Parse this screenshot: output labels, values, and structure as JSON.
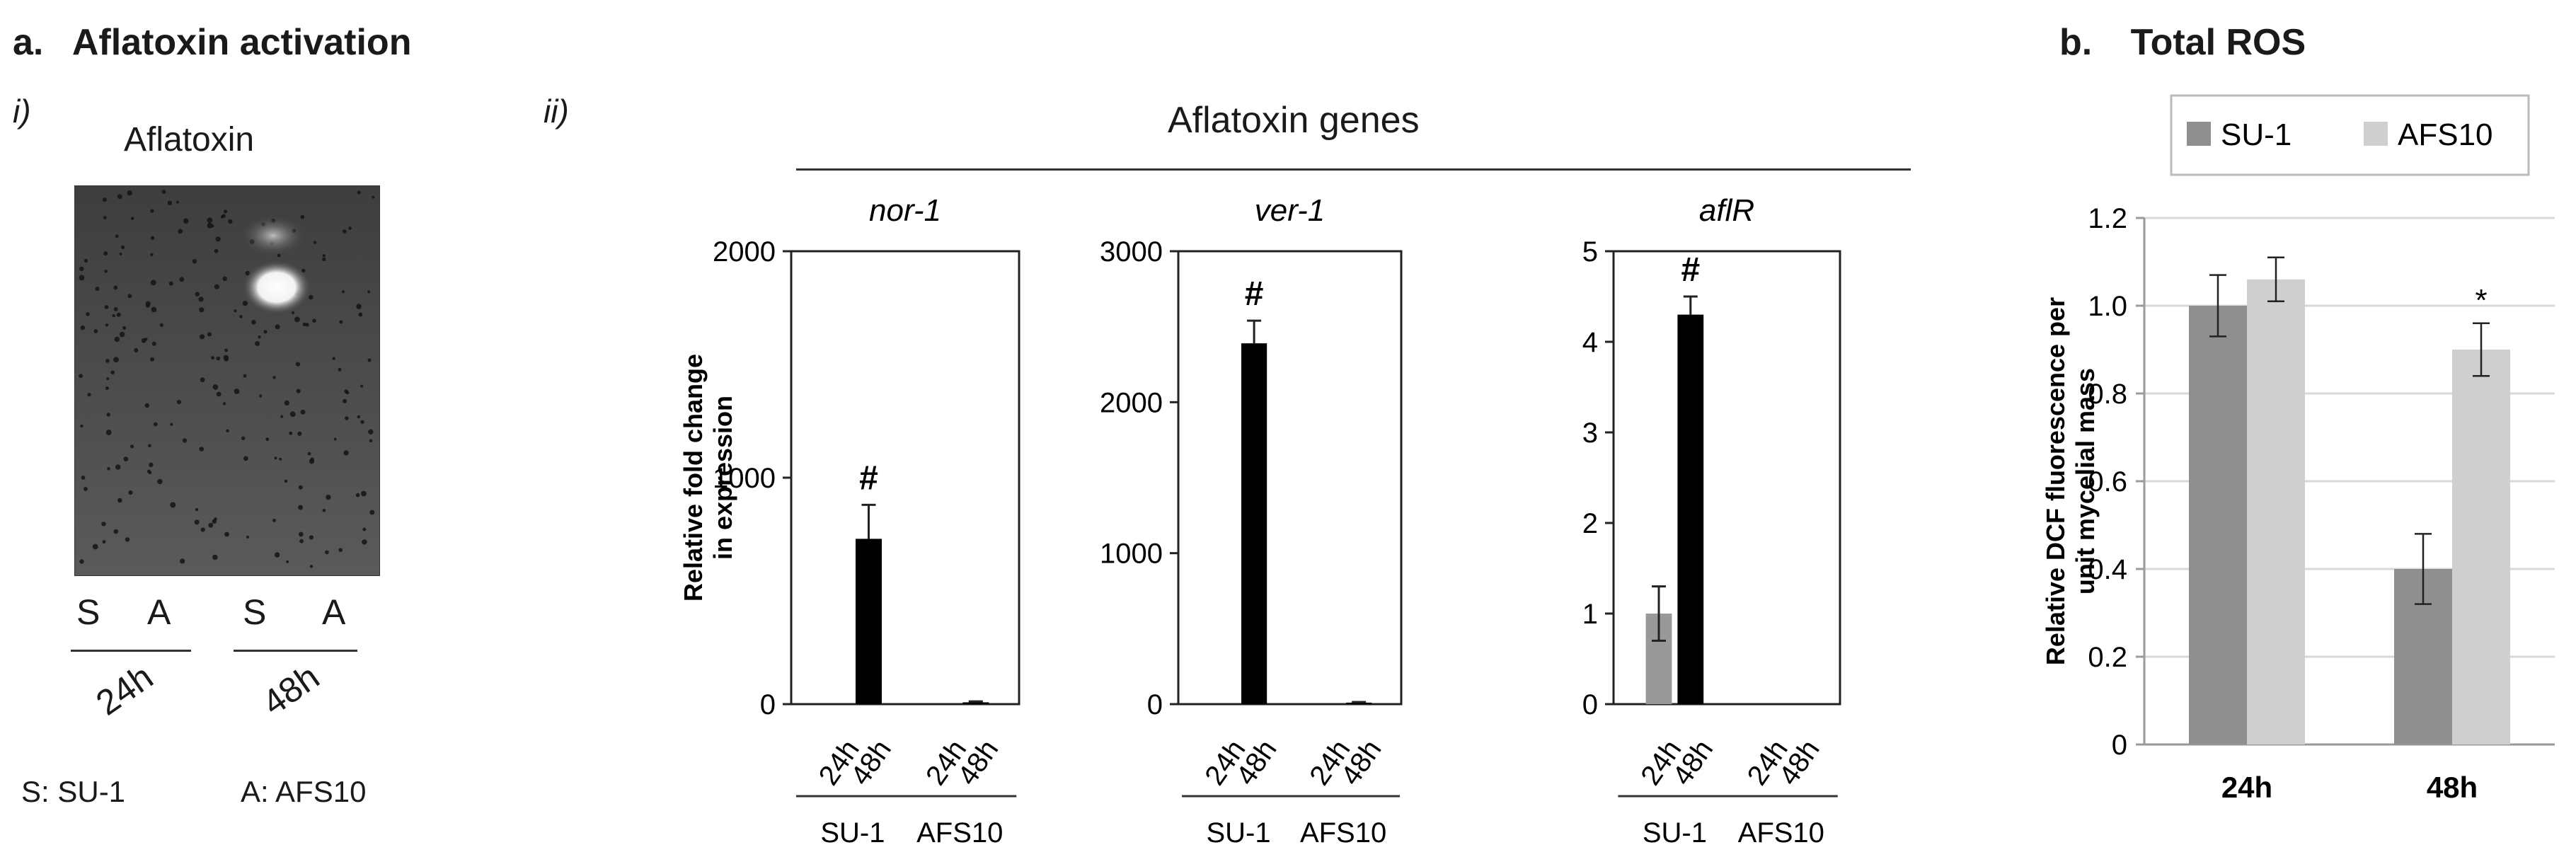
{
  "panel_a": {
    "letter": "a.",
    "title": "Aflatoxin activation",
    "sub_i": "i)",
    "sub_ii": "ii)",
    "blot": {
      "title": "Aflatoxin",
      "lane_labels": [
        "S",
        "A",
        "S",
        "A"
      ],
      "time_labels": [
        "24h",
        "48h"
      ],
      "legend_s": "S: SU-1",
      "legend_a": "A: AFS10"
    },
    "genes_header": "Aflatoxin genes"
  },
  "panel_b": {
    "letter": "b.",
    "title": "Total ROS"
  },
  "chart_data": [
    {
      "type": "bar",
      "title": "nor-1",
      "ylabel": "Relative fold change in expression",
      "ylim": [
        0,
        2000
      ],
      "yticks": [
        "0",
        "1000",
        "2000"
      ],
      "x": [
        "24h",
        "48h",
        "24h",
        "48h"
      ],
      "groups": [
        "SU-1",
        "AFS10"
      ],
      "values": [
        0,
        730,
        0,
        8
      ],
      "errors": [
        0,
        150,
        0,
        4
      ],
      "colors": [
        "#999999",
        "#000000",
        "#999999",
        "#000000"
      ],
      "annotations": [
        {
          "index": 1,
          "text": "#"
        }
      ]
    },
    {
      "type": "bar",
      "title": "ver-1",
      "ylim": [
        0,
        3000
      ],
      "yticks": [
        "0",
        "1000",
        "2000",
        "3000"
      ],
      "x": [
        "24h",
        "48h",
        "24h",
        "48h"
      ],
      "groups": [
        "SU-1",
        "AFS10"
      ],
      "values": [
        0,
        2390,
        0,
        10
      ],
      "errors": [
        0,
        150,
        0,
        4
      ],
      "colors": [
        "#999999",
        "#000000",
        "#999999",
        "#000000"
      ],
      "annotations": [
        {
          "index": 1,
          "text": "#"
        }
      ]
    },
    {
      "type": "bar",
      "title": "aflR",
      "ylim": [
        0,
        5
      ],
      "yticks": [
        "0",
        "1",
        "2",
        "3",
        "4",
        "5"
      ],
      "x": [
        "24h",
        "48h",
        "24h",
        "48h"
      ],
      "groups": [
        "SU-1",
        "AFS10"
      ],
      "values": [
        1.0,
        4.3,
        0,
        0
      ],
      "errors": [
        0.3,
        0.2,
        0,
        0
      ],
      "colors": [
        "#999999",
        "#000000",
        "#999999",
        "#000000"
      ],
      "annotations": [
        {
          "index": 1,
          "text": "#"
        }
      ]
    },
    {
      "type": "bar",
      "title": "",
      "ylabel": "Relative DCF fluorescence per unit mycelial mass",
      "ylim": [
        0,
        1.2
      ],
      "yticks": [
        "0",
        "0.2",
        "0.4",
        "0.6",
        "0.8",
        "1.0",
        "1.2"
      ],
      "categories": [
        "24h",
        "48h"
      ],
      "legend": "top",
      "grid": true,
      "series": [
        {
          "name": "SU-1",
          "color": "#8f8f8f",
          "values": [
            1.0,
            0.4
          ],
          "errors": [
            0.07,
            0.08
          ]
        },
        {
          "name": "AFS10",
          "color": "#cfcfcf",
          "values": [
            1.06,
            0.9
          ],
          "errors": [
            0.05,
            0.06
          ]
        }
      ],
      "annotations": [
        {
          "series": 1,
          "index": 1,
          "text": "*"
        }
      ]
    }
  ]
}
